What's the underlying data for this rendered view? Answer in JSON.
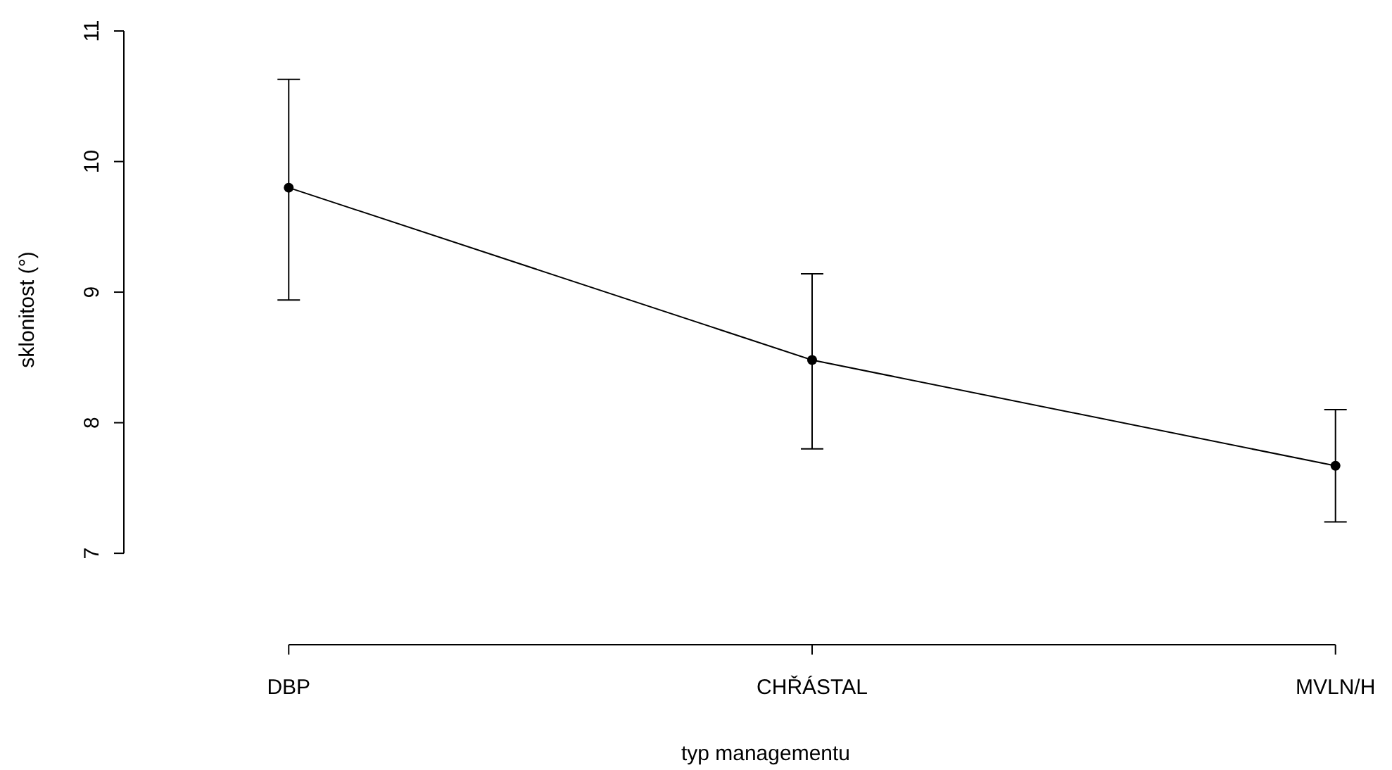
{
  "chart_data": {
    "type": "line",
    "xlabel": "typ managementu",
    "ylabel": "sklonitost (°)",
    "categories": [
      "DBP",
      "CHŘÁSTAL",
      "MVLN/H"
    ],
    "series": [
      {
        "color": "#000000",
        "values": [
          9.8,
          8.48,
          7.67
        ],
        "errors": [
          [
            8.94,
            10.63
          ],
          [
            7.8,
            9.14
          ],
          [
            7.24,
            8.1
          ]
        ]
      }
    ],
    "ylim": [
      6.3,
      11
    ],
    "yticks": [
      7,
      8,
      9,
      10,
      11
    ],
    "grid": false,
    "marker": "circle",
    "line_style": "solid"
  }
}
